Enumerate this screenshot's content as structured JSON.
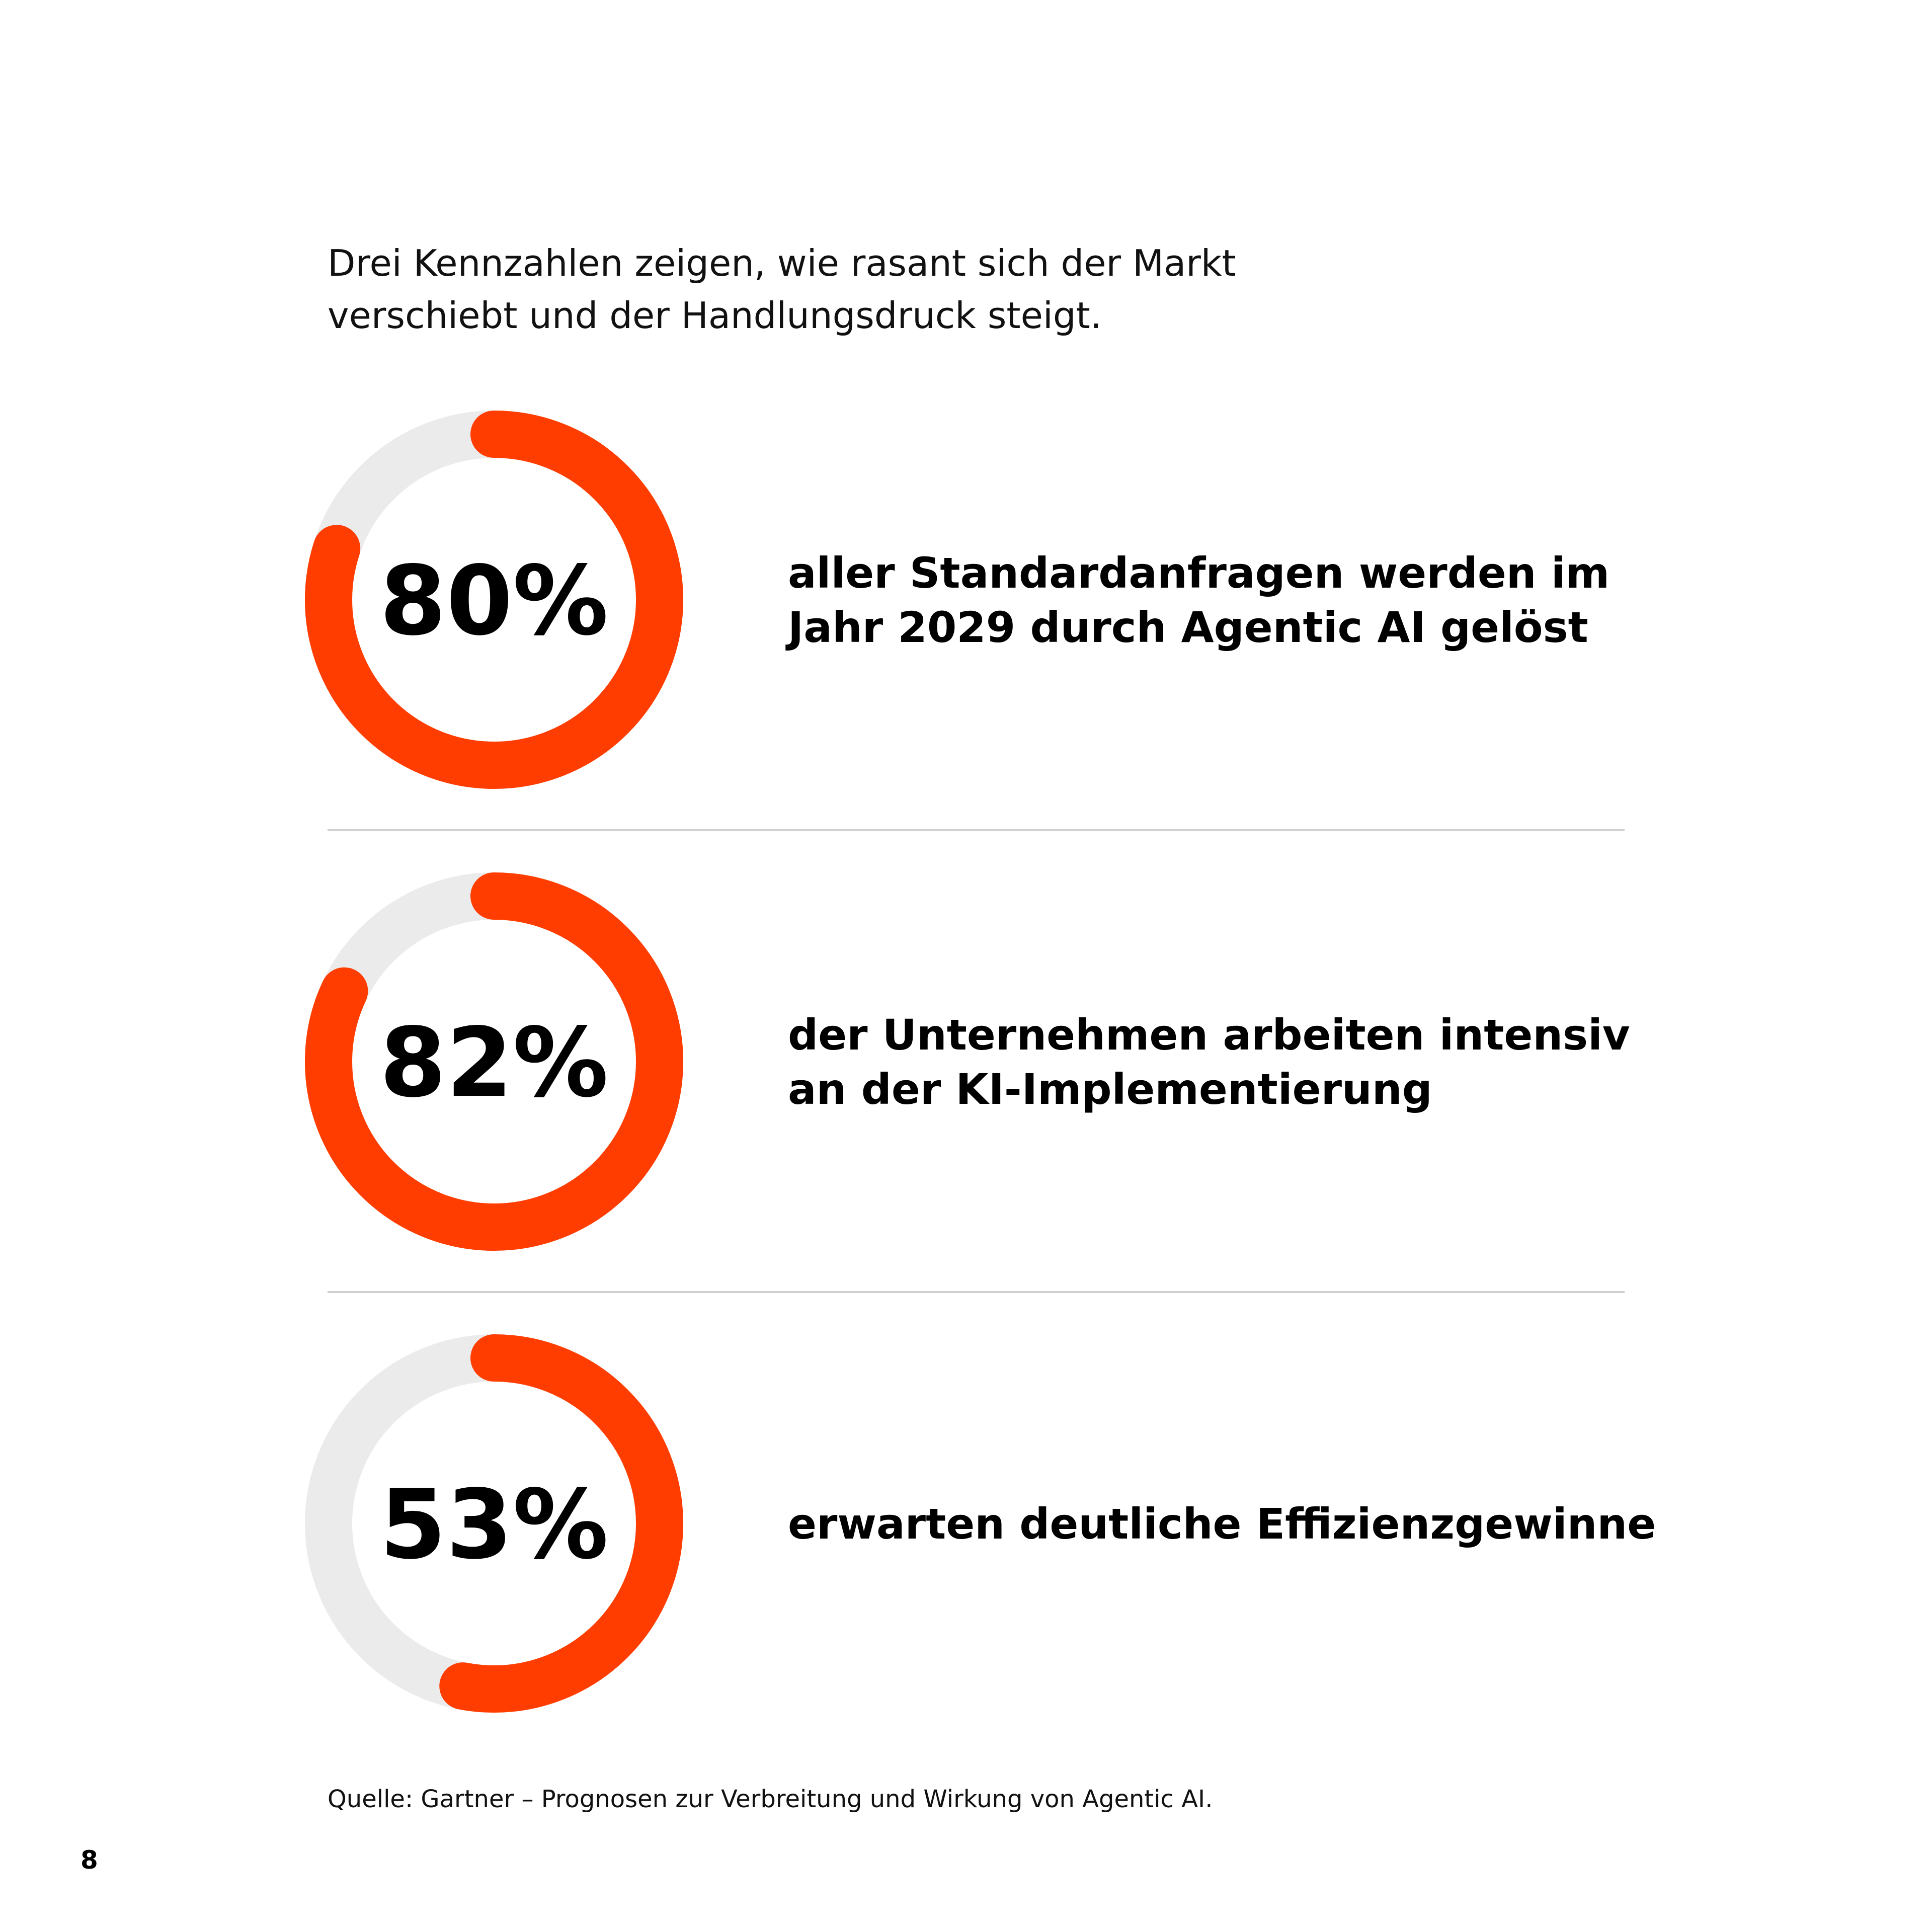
{
  "intro": [
    "Drei Kennzahlen zeigen, wie rasant sich der Markt",
    "verschiebt und der Handlungsdruck steigt."
  ],
  "chart_data": [
    {
      "type": "donut",
      "values": [
        80
      ],
      "value_labels": [
        "80%"
      ],
      "color": "#ff3d00",
      "track_color": "#ebebeb",
      "text": [
        "aller Standardanfragen werden im",
        "Jahr 2029 durch Agentic AI gelöst"
      ]
    },
    {
      "type": "donut",
      "values": [
        82
      ],
      "value_labels": [
        "82%"
      ],
      "color": "#ff3d00",
      "track_color": "#ebebeb",
      "text": [
        "der Unternehmen arbeiten intensiv",
        "an der KI-Implementierung"
      ]
    },
    {
      "type": "donut",
      "values": [
        53
      ],
      "value_labels": [
        "53%"
      ],
      "color": "#ff3d00",
      "track_color": "#ebebeb",
      "text": [
        "erwarten deutliche Effizienzgewinne"
      ]
    }
  ],
  "source": "Quelle: Gartner – Prognosen zur Verbreitung und Wirkung von Agentic AI.",
  "page_number": "8"
}
